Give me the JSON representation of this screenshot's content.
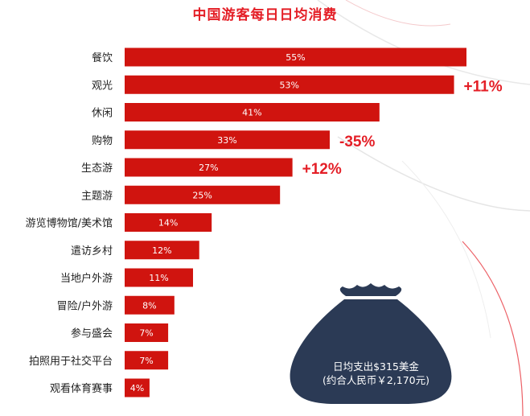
{
  "chart_data": {
    "type": "bar",
    "orientation": "horizontal",
    "title": "中国游客每日日均消费",
    "categories": [
      "餐饮",
      "观光",
      "休闲",
      "购物",
      "生态游",
      "主题游",
      "游览博物馆/美术馆",
      "遣访乡村",
      "当地户外游",
      "冒险/户外游",
      "参与盛会",
      "拍照用于社交平台",
      "观看体育赛事"
    ],
    "values": [
      55,
      53,
      41,
      33,
      27,
      25,
      14,
      12,
      11,
      8,
      7,
      7,
      4
    ],
    "value_labels": [
      "55%",
      "53%",
      "41%",
      "33%",
      "27%",
      "25%",
      "14%",
      "12%",
      "11%",
      "8%",
      "7%",
      "7%",
      "4%"
    ],
    "changes": [
      {
        "category": "观光",
        "label": "+11%"
      },
      {
        "category": "购物",
        "label": "-35%"
      },
      {
        "category": "生态游",
        "label": "+12%"
      }
    ],
    "xlim": [
      0,
      55
    ],
    "bar_color": "#d0140f",
    "change_color": "#e41e26"
  },
  "callout": {
    "line1": "日均支出$315美金",
    "line2": "(约合人民币￥2,170元)",
    "bag_color": "#2b3a55"
  }
}
